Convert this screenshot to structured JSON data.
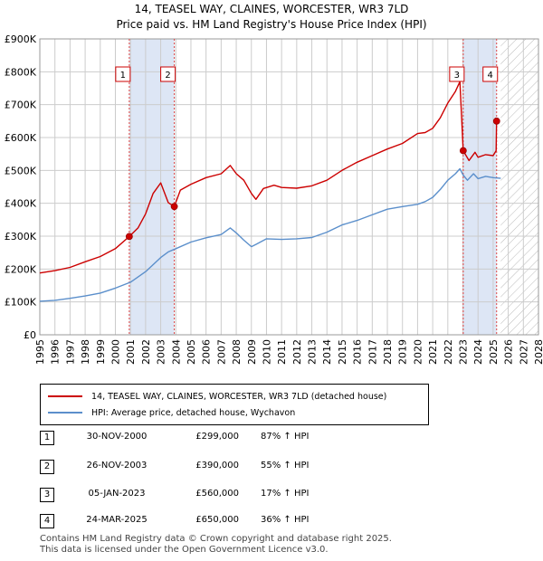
{
  "title": "14, TEASEL WAY, CLAINES, WORCESTER, WR3 7LD",
  "subtitle": "Price paid vs. HM Land Registry's House Price Index (HPI)",
  "colors": {
    "property": "#cc0000",
    "hpi": "#5b8fcb",
    "shade": "#dde6f5",
    "vline": "#dd4444",
    "grid": "#cccccc"
  },
  "chart_data": {
    "type": "line",
    "title": "Price paid vs. HM Land Registry's House Price Index (HPI)",
    "xlim": [
      1995,
      2028
    ],
    "ylim": [
      0,
      900000
    ],
    "x_ticks": [
      "1995",
      "1996",
      "1997",
      "1998",
      "1999",
      "2000",
      "2001",
      "2002",
      "2003",
      "2004",
      "2005",
      "2006",
      "2007",
      "2008",
      "2009",
      "2010",
      "2011",
      "2012",
      "2013",
      "2014",
      "2015",
      "2016",
      "2017",
      "2018",
      "2019",
      "2020",
      "2021",
      "2022",
      "2023",
      "2024",
      "2025",
      "2026",
      "2027",
      "2028"
    ],
    "y_ticks": [
      {
        "value": 0,
        "label": "£0"
      },
      {
        "value": 100000,
        "label": "£100K"
      },
      {
        "value": 200000,
        "label": "£200K"
      },
      {
        "value": 300000,
        "label": "£300K"
      },
      {
        "value": 400000,
        "label": "£400K"
      },
      {
        "value": 500000,
        "label": "£500K"
      },
      {
        "value": 600000,
        "label": "£600K"
      },
      {
        "value": 700000,
        "label": "£700K"
      },
      {
        "value": 800000,
        "label": "£800K"
      },
      {
        "value": 900000,
        "label": "£900K"
      }
    ],
    "future_start": 2025.5,
    "shaded_ranges": [
      [
        2000.92,
        2003.9
      ],
      [
        2023.02,
        2025.23
      ]
    ],
    "series": [
      {
        "name": "14, TEASEL WAY, CLAINES, WORCESTER, WR3 7LD (detached house)",
        "x": [
          1995.0,
          1996.0,
          1997.0,
          1998.0,
          1999.0,
          2000.0,
          2000.92,
          2001.5,
          2002.0,
          2002.5,
          2003.0,
          2003.5,
          2003.9,
          2004.3,
          2005.0,
          2006.0,
          2007.0,
          2007.6,
          2008.0,
          2008.5,
          2009.0,
          2009.3,
          2009.8,
          2010.5,
          2011.0,
          2012.0,
          2013.0,
          2014.0,
          2015.0,
          2016.0,
          2017.0,
          2018.0,
          2019.0,
          2020.0,
          2020.5,
          2021.0,
          2021.5,
          2022.0,
          2022.5,
          2022.8,
          2023.02,
          2023.4,
          2023.8,
          2024.0,
          2024.5,
          2025.0,
          2025.2,
          2025.23
        ],
        "values": [
          188000,
          195000,
          205000,
          222000,
          238000,
          262000,
          299000,
          325000,
          368000,
          430000,
          462000,
          402000,
          390000,
          440000,
          458000,
          478000,
          490000,
          515000,
          490000,
          470000,
          430000,
          412000,
          445000,
          455000,
          448000,
          446000,
          453000,
          470000,
          500000,
          525000,
          545000,
          565000,
          582000,
          612000,
          615000,
          628000,
          660000,
          705000,
          740000,
          770000,
          560000,
          530000,
          555000,
          540000,
          548000,
          545000,
          560000,
          650000
        ]
      },
      {
        "name": "HPI: Average price, detached house, Wychavon",
        "x": [
          1995.0,
          1996.0,
          1997.0,
          1998.0,
          1999.0,
          2000.0,
          2001.0,
          2002.0,
          2003.0,
          2003.5,
          2004.0,
          2005.0,
          2006.0,
          2007.0,
          2007.6,
          2008.0,
          2008.5,
          2009.0,
          2009.3,
          2010.0,
          2011.0,
          2012.0,
          2013.0,
          2014.0,
          2015.0,
          2016.0,
          2017.0,
          2018.0,
          2019.0,
          2020.0,
          2020.5,
          2021.0,
          2021.5,
          2022.0,
          2022.5,
          2022.8,
          2023.0,
          2023.3,
          2023.7,
          2024.0,
          2024.5,
          2025.0,
          2025.5
        ],
        "values": [
          102000,
          105000,
          111000,
          118000,
          127000,
          142000,
          160000,
          192000,
          235000,
          252000,
          262000,
          282000,
          295000,
          305000,
          325000,
          310000,
          288000,
          268000,
          275000,
          292000,
          290000,
          292000,
          296000,
          312000,
          334000,
          348000,
          365000,
          382000,
          390000,
          397000,
          405000,
          418000,
          442000,
          470000,
          490000,
          505000,
          487000,
          470000,
          490000,
          475000,
          482000,
          478000,
          476000
        ]
      }
    ],
    "sales": [
      {
        "marker": "1",
        "x": 2000.92,
        "value": 299000
      },
      {
        "marker": "2",
        "x": 2003.9,
        "value": 390000
      },
      {
        "marker": "3",
        "x": 2023.02,
        "value": 560000
      },
      {
        "marker": "4",
        "x": 2025.23,
        "value": 650000
      }
    ]
  },
  "legend": {
    "property": "14, TEASEL WAY, CLAINES, WORCESTER, WR3 7LD (detached house)",
    "hpi": "HPI: Average price, detached house, Wychavon"
  },
  "sales_table": [
    {
      "num": "1",
      "date": "30-NOV-2000",
      "price": "£299,000",
      "hpi": "87% ↑ HPI"
    },
    {
      "num": "2",
      "date": "26-NOV-2003",
      "price": "£390,000",
      "hpi": "55% ↑ HPI"
    },
    {
      "num": "3",
      "date": "05-JAN-2023",
      "price": "£560,000",
      "hpi": "17% ↑ HPI"
    },
    {
      "num": "4",
      "date": "24-MAR-2025",
      "price": "£650,000",
      "hpi": "36% ↑ HPI"
    }
  ],
  "footer": {
    "line1": "Contains HM Land Registry data © Crown copyright and database right 2025.",
    "line2": "This data is licensed under the Open Government Licence v3.0."
  }
}
